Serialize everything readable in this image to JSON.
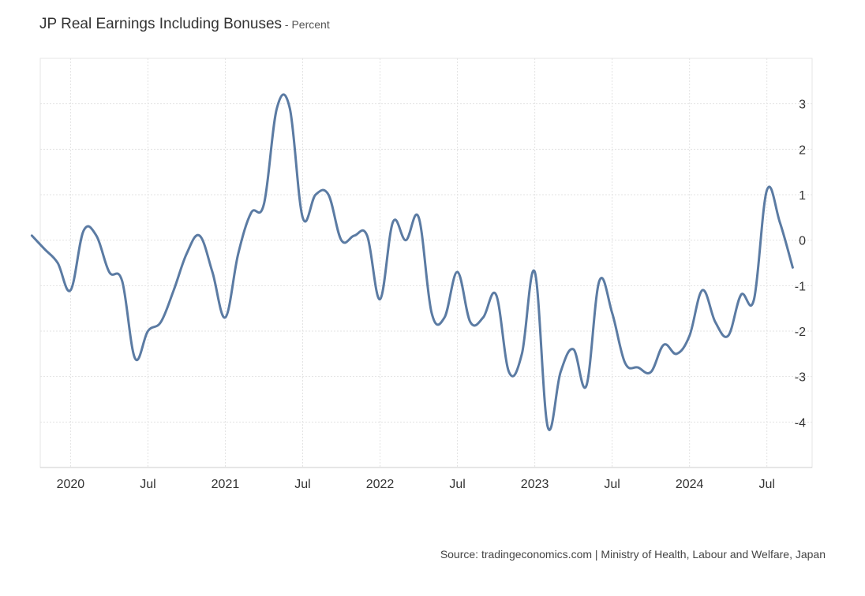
{
  "header": {
    "title": "JP Real Earnings Including Bonuses",
    "subtitle": " - Percent"
  },
  "footer": {
    "source": "Source: tradingeconomics.com | Ministry of Health, Labour and Welfare, Japan"
  },
  "chart_data": {
    "type": "line",
    "title": "JP Real Earnings Including Bonuses",
    "subtitle": "Percent",
    "xlabel": "",
    "ylabel": "",
    "ylim": [
      -5,
      4
    ],
    "y_ticks": [
      3,
      2,
      1,
      0,
      -1,
      -2,
      -3,
      -4
    ],
    "x_ticks": [
      {
        "date": "2020-01",
        "label": "2020"
      },
      {
        "date": "2020-07",
        "label": "Jul"
      },
      {
        "date": "2021-01",
        "label": "2021"
      },
      {
        "date": "2021-07",
        "label": "Jul"
      },
      {
        "date": "2022-01",
        "label": "2022"
      },
      {
        "date": "2022-07",
        "label": "Jul"
      },
      {
        "date": "2023-01",
        "label": "2023"
      },
      {
        "date": "2023-07",
        "label": "Jul"
      },
      {
        "date": "2024-01",
        "label": "2024"
      },
      {
        "date": "2024-07",
        "label": "Jul"
      }
    ],
    "x_range": [
      "2019-10",
      "2024-09"
    ],
    "grid": true,
    "legend": "none",
    "line_color": "#5b7ba3",
    "series": [
      {
        "x": [
          "2019-10",
          "2019-11",
          "2019-12",
          "2020-01",
          "2020-02",
          "2020-03",
          "2020-04",
          "2020-05",
          "2020-06",
          "2020-07",
          "2020-08",
          "2020-09",
          "2020-10",
          "2020-11",
          "2020-12",
          "2021-01",
          "2021-02",
          "2021-03",
          "2021-04",
          "2021-05",
          "2021-06",
          "2021-07",
          "2021-08",
          "2021-09",
          "2021-10",
          "2021-11",
          "2021-12",
          "2022-01",
          "2022-02",
          "2022-03",
          "2022-04",
          "2022-05",
          "2022-06",
          "2022-07",
          "2022-08",
          "2022-09",
          "2022-10",
          "2022-11",
          "2022-12",
          "2023-01",
          "2023-02",
          "2023-03",
          "2023-04",
          "2023-05",
          "2023-06",
          "2023-07",
          "2023-08",
          "2023-09",
          "2023-10",
          "2023-11",
          "2023-12",
          "2024-01",
          "2024-02",
          "2024-03",
          "2024-04",
          "2024-05",
          "2024-06",
          "2024-07",
          "2024-08",
          "2024-09"
        ],
        "values": [
          0.1,
          -0.2,
          -0.5,
          -1.1,
          0.2,
          0.1,
          -0.7,
          -0.9,
          -2.6,
          -2.0,
          -1.8,
          -1.1,
          -0.3,
          0.1,
          -0.7,
          -1.7,
          -0.3,
          0.6,
          0.8,
          2.9,
          2.9,
          0.5,
          1.0,
          1.0,
          0.0,
          0.1,
          0.1,
          -1.3,
          0.4,
          0.0,
          0.5,
          -1.6,
          -1.7,
          -0.7,
          -1.8,
          -1.7,
          -1.2,
          -2.9,
          -2.5,
          -0.7,
          -4.1,
          -2.9,
          -2.4,
          -3.2,
          -0.9,
          -1.6,
          -2.7,
          -2.8,
          -2.9,
          -2.3,
          -2.5,
          -2.1,
          -1.1,
          -1.8,
          -2.1,
          -1.2,
          -1.3,
          1.1,
          0.4,
          -0.6
        ]
      }
    ]
  }
}
